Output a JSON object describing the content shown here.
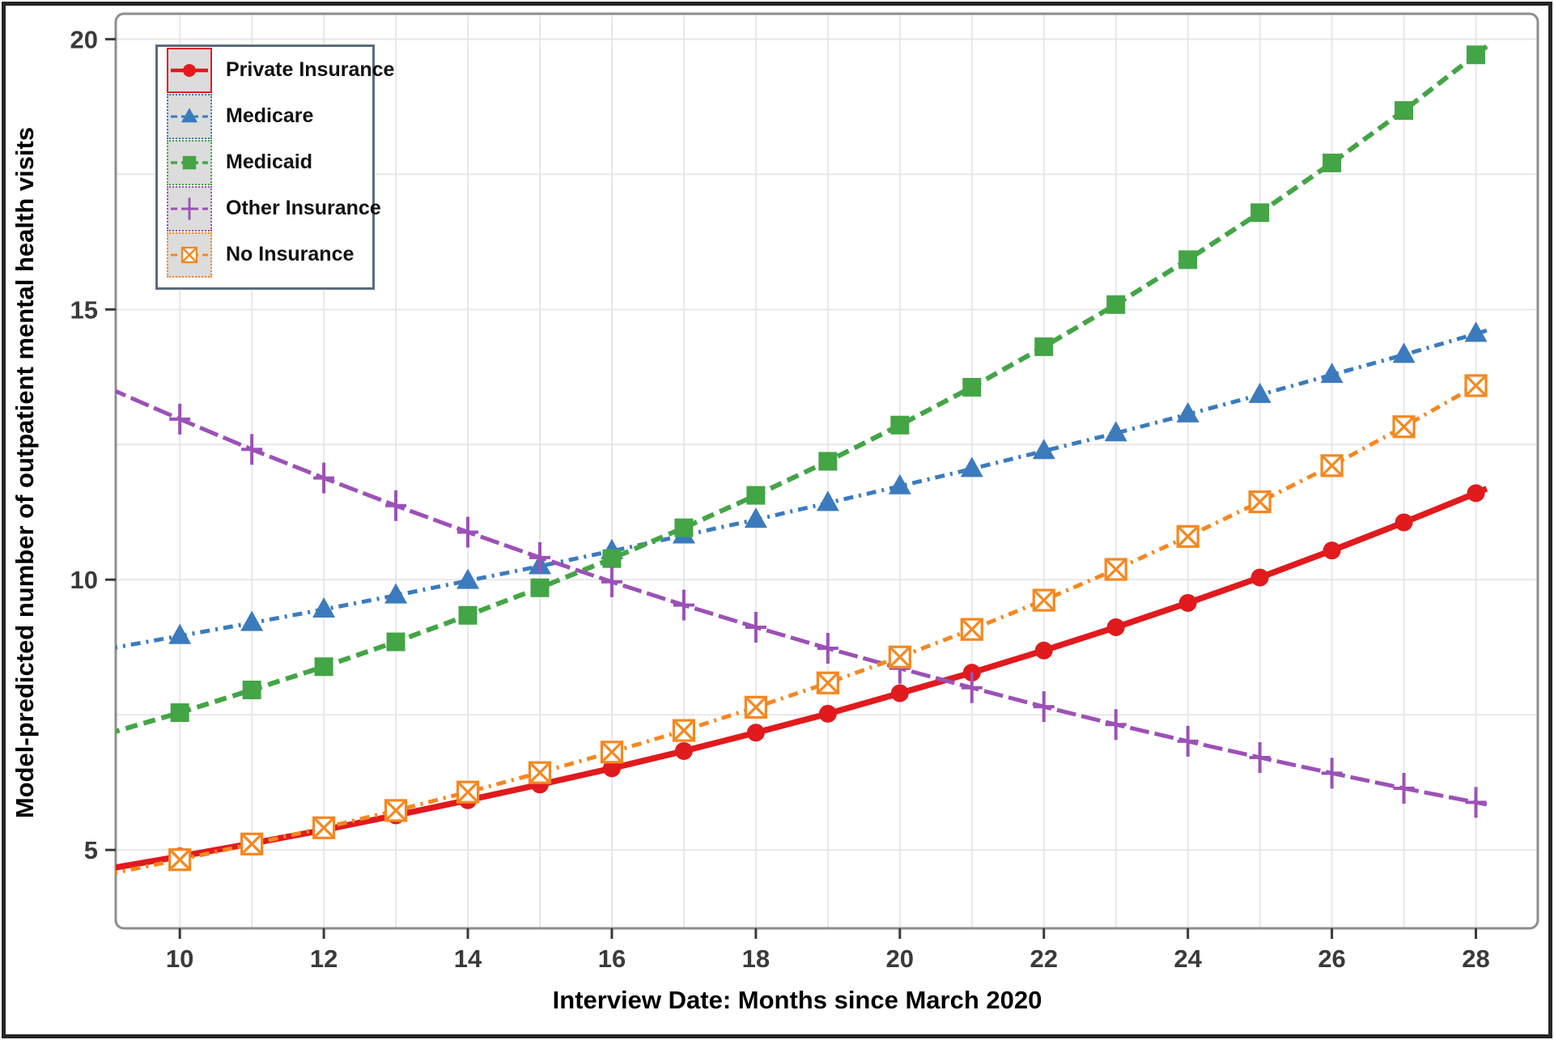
{
  "figure": {
    "outer_border_color": "#262626",
    "panel_border_color": "#8e8e8e",
    "grid_color": "#e7e7e7",
    "tick_color": "#3a3a3a",
    "background": "#ffffff"
  },
  "chart_data": {
    "type": "line",
    "title": "",
    "xlabel": "Interview Date: Months since March 2020",
    "ylabel": "Model-predicted number of outpatient mental health visits",
    "xlim": [
      9.11,
      28.86
    ],
    "ylim": [
      3.55,
      20.47
    ],
    "x_ticks": [
      10,
      12,
      14,
      16,
      18,
      20,
      22,
      24,
      26,
      28
    ],
    "y_ticks": [
      5,
      10,
      15,
      20
    ],
    "x_gridlines": [
      10,
      11,
      12,
      13,
      14,
      15,
      16,
      17,
      18,
      19,
      20,
      21,
      22,
      23,
      24,
      25,
      26,
      27,
      28
    ],
    "y_gridlines": [
      5,
      7.5,
      10,
      12.5,
      15,
      17.5,
      20
    ],
    "grid": true,
    "legend_position": "top-left",
    "x": [
      9,
      10,
      11,
      12,
      13,
      14,
      15,
      16,
      17,
      18,
      19,
      20,
      21,
      22,
      23,
      24,
      25,
      26,
      27,
      28
    ],
    "marker_x_start": 10,
    "line_overshoot_x": 28.15,
    "series": [
      {
        "name": "Private Insurance",
        "color": "#e11a1d",
        "marker": "circle",
        "dash": "solid",
        "width": 7.5,
        "key_border": "solid",
        "values": [
          4.65,
          4.88,
          5.12,
          5.37,
          5.64,
          5.92,
          6.21,
          6.51,
          6.83,
          7.17,
          7.52,
          7.9,
          8.28,
          8.69,
          9.12,
          9.57,
          10.04,
          10.54,
          11.06,
          11.6
        ]
      },
      {
        "name": "Medicare",
        "color": "#3b7bbd",
        "marker": "triangle",
        "dash": "dotdash",
        "width": 5,
        "key_border": "dotted",
        "values": [
          8.72,
          8.96,
          9.2,
          9.45,
          9.71,
          9.98,
          10.25,
          10.53,
          10.82,
          11.11,
          11.42,
          11.73,
          12.05,
          12.38,
          12.71,
          13.06,
          13.42,
          13.79,
          14.16,
          14.55
        ]
      },
      {
        "name": "Medicaid",
        "color": "#43a545",
        "marker": "square",
        "dash": "dash",
        "width": 6,
        "key_border": "dotted",
        "values": [
          7.15,
          7.54,
          7.96,
          8.39,
          8.85,
          9.34,
          9.85,
          10.39,
          10.96,
          11.56,
          12.19,
          12.86,
          13.56,
          14.31,
          15.09,
          15.92,
          16.79,
          17.71,
          18.68,
          19.71
        ]
      },
      {
        "name": "Other Insurance",
        "color": "#9c51b6",
        "marker": "plus",
        "dash": "longdash",
        "width": 5,
        "key_border": "dotted",
        "values": [
          13.55,
          12.97,
          12.41,
          11.88,
          11.37,
          10.88,
          10.41,
          9.96,
          9.53,
          9.12,
          8.73,
          8.36,
          8.0,
          7.65,
          7.32,
          7.01,
          6.71,
          6.42,
          6.14,
          5.88
        ]
      },
      {
        "name": "No Insurance",
        "color": "#f6871f",
        "marker": "square-x",
        "dash": "dotdash",
        "width": 5,
        "key_border": "dotted",
        "values": [
          4.55,
          4.82,
          5.11,
          5.41,
          5.73,
          6.07,
          6.43,
          6.81,
          7.21,
          7.64,
          8.09,
          8.57,
          9.08,
          9.62,
          10.19,
          10.8,
          11.44,
          12.11,
          12.83,
          13.59
        ]
      }
    ]
  }
}
